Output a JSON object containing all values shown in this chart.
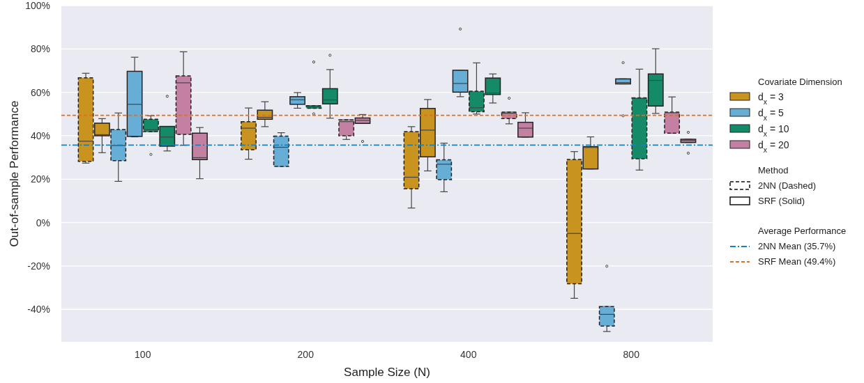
{
  "chart_data": {
    "type": "box",
    "xlabel": "Sample Size (N)",
    "ylabel": "Out-of-sample Performance",
    "legend_title": "Covariate Dimension",
    "legend": "right",
    "grid": "y",
    "categories": [
      "100",
      "200",
      "400",
      "800"
    ],
    "ylim": [
      -55,
      100
    ],
    "yticks": [
      {
        "value": -40,
        "label": "-40%"
      },
      {
        "value": -20,
        "label": "-20%"
      },
      {
        "value": 0,
        "label": "0%"
      },
      {
        "value": 20,
        "label": "20%"
      },
      {
        "value": 40,
        "label": "40%"
      },
      {
        "value": 60,
        "label": "60%"
      },
      {
        "value": 80,
        "label": "80%"
      },
      {
        "value": 100,
        "label": "100%"
      }
    ],
    "series": [
      {
        "name": "d$_{x}$ = 3",
        "color": "#c99320",
        "line_style": "dashed",
        "boxes": [
          {
            "low": 27.4,
            "q1": 28.2,
            "median": 37.5,
            "q3": 66.7,
            "high": 68.8
          },
          {
            "low": 29.2,
            "q1": 33.6,
            "median": 43.5,
            "q3": 46.5,
            "high": 52.8
          },
          {
            "low": 6.7,
            "q1": 15.6,
            "median": 20.9,
            "q3": 41.9,
            "high": 44.2
          },
          {
            "low": -34.9,
            "q1": -28.2,
            "median": -5,
            "q3": 29.1,
            "high": 32.7
          }
        ]
      },
      {
        "color": "#c99320",
        "line_style": "solid",
        "boxes": [
          {
            "low": 32.2,
            "q1": 40,
            "median": 40.5,
            "q3": 45.8,
            "high": 47.9
          },
          {
            "low": 44.2,
            "q1": 47.6,
            "median": 48.5,
            "q3": 51.8,
            "high": 55.7
          },
          {
            "low": 23.8,
            "q1": 30.3,
            "median": 42.6,
            "q3": 52.6,
            "high": 56.7
          },
          {
            "low": 24.7,
            "q1": 24.7,
            "median": 34.6,
            "q3": 35,
            "high": 39.5
          }
        ]
      },
      {
        "name": "d$_{x}$ = 5",
        "color": "#67aed6",
        "line_style": "dashed",
        "boxes": [
          {
            "low": 19,
            "q1": 28.5,
            "median": 35.5,
            "q3": 42.9,
            "high": 50.5
          },
          {
            "low": 25.9,
            "q1": 25.9,
            "median": 34.7,
            "q3": 39.8,
            "high": 41.4
          },
          {
            "low": 14.2,
            "q1": 19.8,
            "median": 26.9,
            "q3": 28.9,
            "high": 36.6
          },
          {
            "low": -50.2,
            "q1": -47.7,
            "median": -42.3,
            "q3": -38.7,
            "high": -38.7,
            "outliers": [
              -20.1
            ]
          }
        ]
      },
      {
        "color": "#67aed6",
        "line_style": "solid",
        "boxes": [
          {
            "low": 39.5,
            "q1": 39.7,
            "median": 54.5,
            "q3": 69.7,
            "high": 76.2
          },
          {
            "low": 52.7,
            "q1": 54.5,
            "median": 56.6,
            "q3": 58,
            "high": 59.9
          },
          {
            "low": 58,
            "q1": 60.1,
            "median": 64.1,
            "q3": 70.2,
            "high": 70.2,
            "outliers": [
              89.2
            ]
          },
          {
            "low": 63.9,
            "q1": 63.9,
            "median": 64.5,
            "q3": 66.2,
            "high": 66.2,
            "outliers": [
              73.7,
              49.2
            ]
          }
        ]
      },
      {
        "name": "d$_{x}$ = 10",
        "color": "#148a68",
        "line_style": "dashed",
        "boxes": [
          {
            "low": 41.9,
            "q1": 41.9,
            "median": 42.8,
            "q3": 47.6,
            "high": 49.2,
            "outliers": [
              31.4
            ]
          },
          {
            "low": 52.7,
            "q1": 52.7,
            "median": 53.4,
            "q3": 53.9,
            "high": 53.9,
            "outliers": [
              74,
              50.1
            ]
          },
          {
            "low": 50,
            "q1": 51.1,
            "median": 52.9,
            "q3": 60.5,
            "high": 73.6
          },
          {
            "low": 24.2,
            "q1": 29.4,
            "median": 57.2,
            "q3": 57.5,
            "high": 70.7
          }
        ]
      },
      {
        "color": "#148a68",
        "line_style": "solid",
        "boxes": [
          {
            "low": 33,
            "q1": 35.2,
            "median": 39.4,
            "q3": 44.3,
            "high": 44.3,
            "outliers": [
              58.2
            ]
          },
          {
            "low": 48.1,
            "q1": 54.7,
            "median": 56.5,
            "q3": 61.7,
            "high": 70.5,
            "outliers": [
              77.1
            ]
          },
          {
            "low": 55.1,
            "q1": 59,
            "median": 59.7,
            "q3": 66.6,
            "high": 68.5
          },
          {
            "low": 50.3,
            "q1": 53.7,
            "median": 65.5,
            "q3": 68.5,
            "high": 80.1
          }
        ]
      },
      {
        "name": "d$_{x}$ = 20",
        "color": "#c480a3",
        "line_style": "dashed",
        "boxes": [
          {
            "low": 35.6,
            "q1": 40.6,
            "median": 64.4,
            "q3": 67.6,
            "high": 78.7
          },
          {
            "low": 38.3,
            "q1": 40,
            "median": 46.5,
            "q3": 47.4,
            "high": 47.4
          },
          {
            "low": 45.5,
            "q1": 47.9,
            "median": 50.4,
            "q3": 50.9,
            "high": 50.9,
            "outliers": [
              57.3
            ]
          },
          {
            "low": 41.2,
            "q1": 41.2,
            "median": 50.6,
            "q3": 50.9,
            "high": 57.9
          }
        ]
      },
      {
        "color": "#c480a3",
        "line_style": "solid",
        "boxes": [
          {
            "low": 20.2,
            "q1": 29,
            "median": 29.9,
            "q3": 41.2,
            "high": 43.8
          },
          {
            "low": 45.7,
            "q1": 45.7,
            "median": 47.1,
            "q3": 48.2,
            "high": 49.8,
            "outliers": [
              37.4
            ]
          },
          {
            "low": 39.4,
            "q1": 39.4,
            "median": 43.5,
            "q3": 46.2,
            "high": 50.6
          },
          {
            "low": 36.9,
            "q1": 36.9,
            "median": 37.8,
            "q3": 38.4,
            "high": 38.4,
            "outliers": [
              41.6,
              32
            ]
          }
        ]
      }
    ],
    "ref_lines": [
      {
        "axis": "y",
        "value": 35.7,
        "label": "2NN Mean (35.7%)",
        "color": "#1a80bb",
        "line_style": "dashdot"
      },
      {
        "axis": "y",
        "value": 49.4,
        "label": "SRF Mean (49.4%)",
        "color": "#dd7020",
        "line_style": "dashed"
      }
    ],
    "annotations": [
      "Method",
      "2NN (Dashed)",
      "SRF (Solid)",
      "Average Performance"
    ]
  }
}
